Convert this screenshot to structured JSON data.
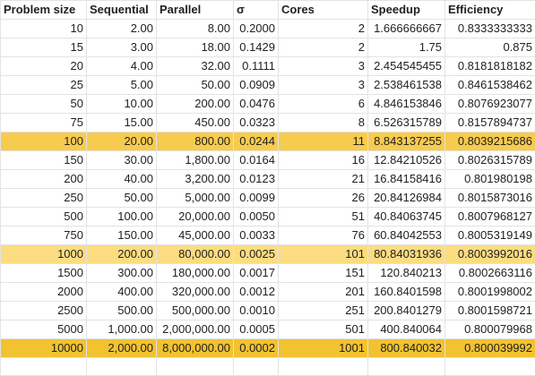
{
  "columns": [
    "Problem size",
    "Sequential",
    "Parallel",
    "σ",
    "Cores",
    "Speedup",
    "Efficiency"
  ],
  "rows": [
    {
      "cells": [
        "10",
        "2.00",
        "8.00",
        "0.2000",
        "2",
        "1.666666667",
        "0.8333333333"
      ],
      "highlight": ""
    },
    {
      "cells": [
        "15",
        "3.00",
        "18.00",
        "0.1429",
        "2",
        "1.75",
        "0.875"
      ],
      "highlight": ""
    },
    {
      "cells": [
        "20",
        "4.00",
        "32.00",
        "0.1111",
        "3",
        "2.454545455",
        "0.8181818182"
      ],
      "highlight": ""
    },
    {
      "cells": [
        "25",
        "5.00",
        "50.00",
        "0.0909",
        "3",
        "2.538461538",
        "0.8461538462"
      ],
      "highlight": ""
    },
    {
      "cells": [
        "50",
        "10.00",
        "200.00",
        "0.0476",
        "6",
        "4.846153846",
        "0.8076923077"
      ],
      "highlight": ""
    },
    {
      "cells": [
        "75",
        "15.00",
        "450.00",
        "0.0323",
        "8",
        "6.526315789",
        "0.8157894737"
      ],
      "highlight": ""
    },
    {
      "cells": [
        "100",
        "20.00",
        "800.00",
        "0.0244",
        "11",
        "8.843137255",
        "0.8039215686"
      ],
      "highlight": "mid"
    },
    {
      "cells": [
        "150",
        "30.00",
        "1,800.00",
        "0.0164",
        "16",
        "12.84210526",
        "0.8026315789"
      ],
      "highlight": ""
    },
    {
      "cells": [
        "200",
        "40.00",
        "3,200.00",
        "0.0123",
        "21",
        "16.84158416",
        "0.801980198"
      ],
      "highlight": ""
    },
    {
      "cells": [
        "250",
        "50.00",
        "5,000.00",
        "0.0099",
        "26",
        "20.84126984",
        "0.8015873016"
      ],
      "highlight": ""
    },
    {
      "cells": [
        "500",
        "100.00",
        "20,000.00",
        "0.0050",
        "51",
        "40.84063745",
        "0.8007968127"
      ],
      "highlight": ""
    },
    {
      "cells": [
        "750",
        "150.00",
        "45,000.00",
        "0.0033",
        "76",
        "60.84042553",
        "0.8005319149"
      ],
      "highlight": ""
    },
    {
      "cells": [
        "1000",
        "200.00",
        "80,000.00",
        "0.0025",
        "101",
        "80.84031936",
        "0.8003992016"
      ],
      "highlight": "light"
    },
    {
      "cells": [
        "1500",
        "300.00",
        "180,000.00",
        "0.0017",
        "151",
        "120.840213",
        "0.8002663116"
      ],
      "highlight": ""
    },
    {
      "cells": [
        "2000",
        "400.00",
        "320,000.00",
        "0.0012",
        "201",
        "160.8401598",
        "0.8001998002"
      ],
      "highlight": ""
    },
    {
      "cells": [
        "2500",
        "500.00",
        "500,000.00",
        "0.0010",
        "251",
        "200.8401279",
        "0.8001598721"
      ],
      "highlight": ""
    },
    {
      "cells": [
        "5000",
        "1,000.00",
        "2,000,000.00",
        "0.0005",
        "501",
        "400.840064",
        "0.800079968"
      ],
      "highlight": ""
    },
    {
      "cells": [
        "10000",
        "2,000.00",
        "8,000,000.00",
        "0.0002",
        "1001",
        "800.840032",
        "0.800039992"
      ],
      "highlight": "strong"
    }
  ],
  "colors": {
    "highlight_light": "#fbdc80",
    "highlight_mid": "#f7cb4d",
    "highlight_strong": "#f2c230",
    "gridline": "#e2e3e3"
  }
}
